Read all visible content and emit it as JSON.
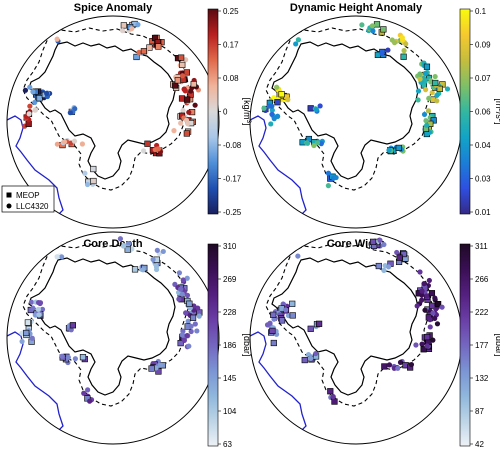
{
  "legend": {
    "items": [
      {
        "label": "MEOP",
        "marker": "square"
      },
      {
        "label": "LLC4320",
        "marker": "circle"
      }
    ]
  },
  "chart_data": [
    {
      "type": "scatter",
      "title": "Spice Anomaly",
      "colorbar": {
        "unit_parts": [
          "[kg/m",
          "3",
          "]"
        ],
        "ticks": [
          "0.25",
          "0.17",
          "0.08",
          "0",
          "-0.08",
          "-0.17",
          "-0.25"
        ],
        "range": [
          -0.25,
          0.25
        ],
        "colormap": "diverging-blue-red",
        "colors": [
          "#1a1f5e",
          "#1f4fb0",
          "#4f8fd8",
          "#a9c7e8",
          "#d9d9d9",
          "#f0b39a",
          "#e06a4b",
          "#b82020",
          "#5a0a12"
        ]
      },
      "series": [
        {
          "name": "MEOP",
          "marker": "square"
        },
        {
          "name": "LLC4320",
          "marker": "circle"
        }
      ]
    },
    {
      "type": "scatter",
      "title": "Dynamic Height Anomaly",
      "colorbar": {
        "unit_parts": [
          "[m",
          "2",
          "/s",
          "2",
          "]"
        ],
        "ticks": [
          "0.1",
          "0.09",
          "0.07",
          "0.06",
          "0.04",
          "0.03",
          "0.01"
        ],
        "range": [
          0.01,
          0.1
        ],
        "colormap": "parula",
        "colors": [
          "#352a87",
          "#2e4fe0",
          "#1b7ed6",
          "#12a4c6",
          "#33b7a0",
          "#7fbf67",
          "#c5bd3d",
          "#f5c92f",
          "#f9fb0e"
        ]
      },
      "series": [
        {
          "name": "MEOP",
          "marker": "square"
        },
        {
          "name": "LLC4320",
          "marker": "circle"
        }
      ]
    },
    {
      "type": "scatter",
      "title": "Core Depth",
      "colorbar": {
        "unit_parts": [
          "[dbar]"
        ],
        "ticks": [
          "310",
          "269",
          "228",
          "186",
          "145",
          "104",
          "63"
        ],
        "range": [
          63,
          310
        ],
        "colormap": "dense-purple",
        "colors": [
          "#eef2f6",
          "#bcd4e6",
          "#8fb6dc",
          "#7b93d3",
          "#7466c0",
          "#6a3ea6",
          "#54207f",
          "#3a0f55",
          "#1e0a25"
        ]
      },
      "series": [
        {
          "name": "MEOP",
          "marker": "square"
        },
        {
          "name": "LLC4320",
          "marker": "circle"
        }
      ]
    },
    {
      "type": "scatter",
      "title": "Core Width",
      "colorbar": {
        "unit_parts": [
          "[dbar]"
        ],
        "ticks": [
          "311",
          "266",
          "222",
          "177",
          "132",
          "87",
          "42"
        ],
        "range": [
          42,
          311
        ],
        "colormap": "dense-purple",
        "colors": [
          "#eef2f6",
          "#bcd4e6",
          "#8fb6dc",
          "#7b93d3",
          "#7466c0",
          "#6a3ea6",
          "#54207f",
          "#3a0f55",
          "#1e0a25"
        ]
      },
      "series": [
        {
          "name": "MEOP",
          "marker": "square"
        },
        {
          "name": "LLC4320",
          "marker": "circle"
        }
      ]
    }
  ]
}
